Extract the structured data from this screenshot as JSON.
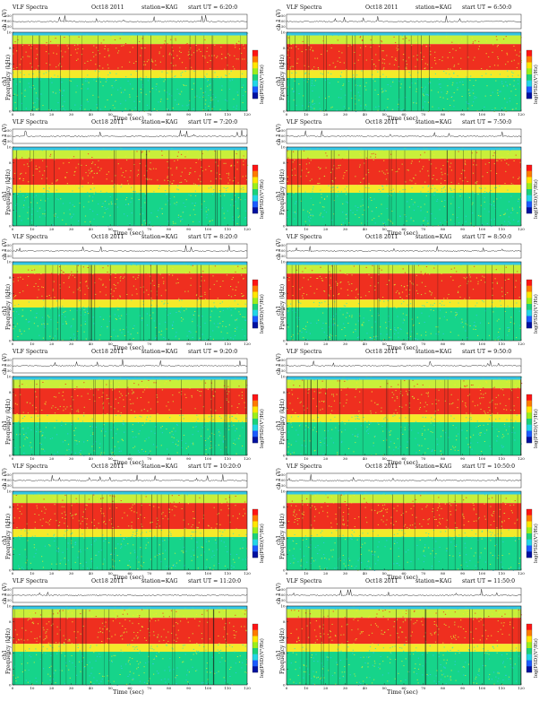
{
  "page": {
    "header_left": "VLF Spectra",
    "date": "Oct18 2011",
    "station": "station=KAG",
    "start_prefix": "start  UT =",
    "top_ylabel": "ch 1 (V)",
    "ylabel_ch": "ch1",
    "ylabel_freq": "Frequency  (kHz)",
    "xlabel": "Time  (sec)",
    "colorbar_label": "log(PSD)(V²/Hz)"
  },
  "chart_data": [
    {
      "type": "heatmap",
      "start_ut": "6:20:0",
      "column": "left",
      "time_range": [
        0,
        120
      ],
      "x_ticks": [
        0,
        10,
        20,
        30,
        40,
        50,
        60,
        70,
        80,
        90,
        100,
        110,
        120
      ],
      "freq_range_khz": [
        0,
        10
      ],
      "y_ticks": [
        0,
        2,
        4,
        6,
        8,
        10
      ],
      "top_trace_ticks": [
        "0.50",
        "0.00",
        "-0.50"
      ]
    },
    {
      "type": "heatmap",
      "start_ut": "6:50:0",
      "column": "right",
      "time_range": [
        0,
        120
      ],
      "x_ticks": [
        0,
        10,
        20,
        30,
        40,
        50,
        60,
        70,
        80,
        90,
        100,
        110,
        120
      ],
      "freq_range_khz": [
        0,
        10
      ],
      "y_ticks": [
        0,
        2,
        4,
        6,
        8,
        10
      ],
      "top_trace_ticks": [
        "0.50",
        "0.00",
        "-0.50"
      ]
    },
    {
      "type": "heatmap",
      "start_ut": "7:20:0",
      "column": "left",
      "time_range": [
        0,
        120
      ],
      "x_ticks": [
        0,
        10,
        20,
        30,
        40,
        50,
        60,
        70,
        80,
        90,
        100,
        110,
        120
      ],
      "freq_range_khz": [
        0,
        10
      ],
      "y_ticks": [
        0,
        2,
        4,
        6,
        8,
        10
      ],
      "top_trace_ticks": [
        "0.50",
        "0.00",
        "-0.50"
      ]
    },
    {
      "type": "heatmap",
      "start_ut": "7:50:0",
      "column": "right",
      "time_range": [
        0,
        120
      ],
      "x_ticks": [
        0,
        10,
        20,
        30,
        40,
        50,
        60,
        70,
        80,
        90,
        100,
        110,
        120
      ],
      "freq_range_khz": [
        0,
        10
      ],
      "y_ticks": [
        0,
        2,
        4,
        6,
        8,
        10
      ],
      "top_trace_ticks": [
        "0.50",
        "0.00",
        "-0.50"
      ]
    },
    {
      "type": "heatmap",
      "start_ut": "8:20:0",
      "column": "left",
      "time_range": [
        0,
        120
      ],
      "x_ticks": [
        0,
        10,
        20,
        30,
        40,
        50,
        60,
        70,
        80,
        90,
        100,
        110,
        120
      ],
      "freq_range_khz": [
        0,
        10
      ],
      "y_ticks": [
        0,
        2,
        4,
        6,
        8,
        10
      ],
      "top_trace_ticks": [
        "0.50",
        "0.00",
        "-0.50"
      ]
    },
    {
      "type": "heatmap",
      "start_ut": "8:50:0",
      "column": "right",
      "time_range": [
        0,
        120
      ],
      "x_ticks": [
        0,
        10,
        20,
        30,
        40,
        50,
        60,
        70,
        80,
        90,
        100,
        110,
        120
      ],
      "freq_range_khz": [
        0,
        10
      ],
      "y_ticks": [
        0,
        2,
        4,
        6,
        8,
        10
      ],
      "top_trace_ticks": [
        "0.50",
        "0.00",
        "-0.50"
      ]
    },
    {
      "type": "heatmap",
      "start_ut": "9:20:0",
      "column": "left",
      "time_range": [
        0,
        120
      ],
      "x_ticks": [
        0,
        10,
        20,
        30,
        40,
        50,
        60,
        70,
        80,
        90,
        100,
        110,
        120
      ],
      "freq_range_khz": [
        0,
        10
      ],
      "y_ticks": [
        0,
        2,
        4,
        6,
        8,
        10
      ],
      "top_trace_ticks": [
        "0.50",
        "0.00",
        "-0.50"
      ]
    },
    {
      "type": "heatmap",
      "start_ut": "9:50:0",
      "column": "right",
      "time_range": [
        0,
        120
      ],
      "x_ticks": [
        0,
        10,
        20,
        30,
        40,
        50,
        60,
        70,
        80,
        90,
        100,
        110,
        120
      ],
      "freq_range_khz": [
        0,
        10
      ],
      "y_ticks": [
        0,
        2,
        4,
        6,
        8,
        10
      ],
      "top_trace_ticks": [
        "0.50",
        "0.00",
        "-0.50"
      ]
    },
    {
      "type": "heatmap",
      "start_ut": "10:20:0",
      "column": "left",
      "time_range": [
        0,
        120
      ],
      "x_ticks": [
        0,
        10,
        20,
        30,
        40,
        50,
        60,
        70,
        80,
        90,
        100,
        110,
        120
      ],
      "freq_range_khz": [
        0,
        10
      ],
      "y_ticks": [
        0,
        2,
        4,
        6,
        8,
        10
      ],
      "top_trace_ticks": [
        "0.50",
        "0.00",
        "-0.50"
      ]
    },
    {
      "type": "heatmap",
      "start_ut": "10:50:0",
      "column": "right",
      "time_range": [
        0,
        120
      ],
      "x_ticks": [
        0,
        10,
        20,
        30,
        40,
        50,
        60,
        70,
        80,
        90,
        100,
        110,
        120
      ],
      "freq_range_khz": [
        0,
        10
      ],
      "y_ticks": [
        0,
        2,
        4,
        6,
        8,
        10
      ],
      "top_trace_ticks": [
        "0.50",
        "0.00",
        "-0.50"
      ]
    },
    {
      "type": "heatmap",
      "start_ut": "11:20:0",
      "column": "left",
      "time_range": [
        0,
        120
      ],
      "x_ticks": [
        0,
        10,
        20,
        30,
        40,
        50,
        60,
        70,
        80,
        90,
        100,
        110,
        120
      ],
      "freq_range_khz": [
        0,
        10
      ],
      "y_ticks": [
        0,
        2,
        4,
        6,
        8,
        10
      ],
      "top_trace_ticks": [
        "0.50",
        "0.00",
        "-0.50"
      ]
    },
    {
      "type": "heatmap",
      "start_ut": "11:50:0",
      "column": "right",
      "time_range": [
        0,
        120
      ],
      "x_ticks": [
        0,
        10,
        20,
        30,
        40,
        50,
        60,
        70,
        80,
        90,
        100,
        110,
        120
      ],
      "freq_range_khz": [
        0,
        10
      ],
      "y_ticks": [
        0,
        2,
        4,
        6,
        8,
        10
      ],
      "top_trace_ticks": [
        "0.50",
        "0.00",
        "-0.50"
      ]
    }
  ],
  "colors": {
    "band_top": "#33c6e6",
    "low_band": "#3ee6b0",
    "mid_band": "#16d48a",
    "upper_band": "#c9ef3a",
    "hot_band": "#ef2f1f",
    "yellow": "#f4ea2a",
    "stripe": "#1a1a1a"
  },
  "colorbar": [
    "#ff1414",
    "#ff7a00",
    "#ffe600",
    "#9bef1a",
    "#1ad27a",
    "#22d6e6",
    "#1a5bff",
    "#0010a0"
  ]
}
